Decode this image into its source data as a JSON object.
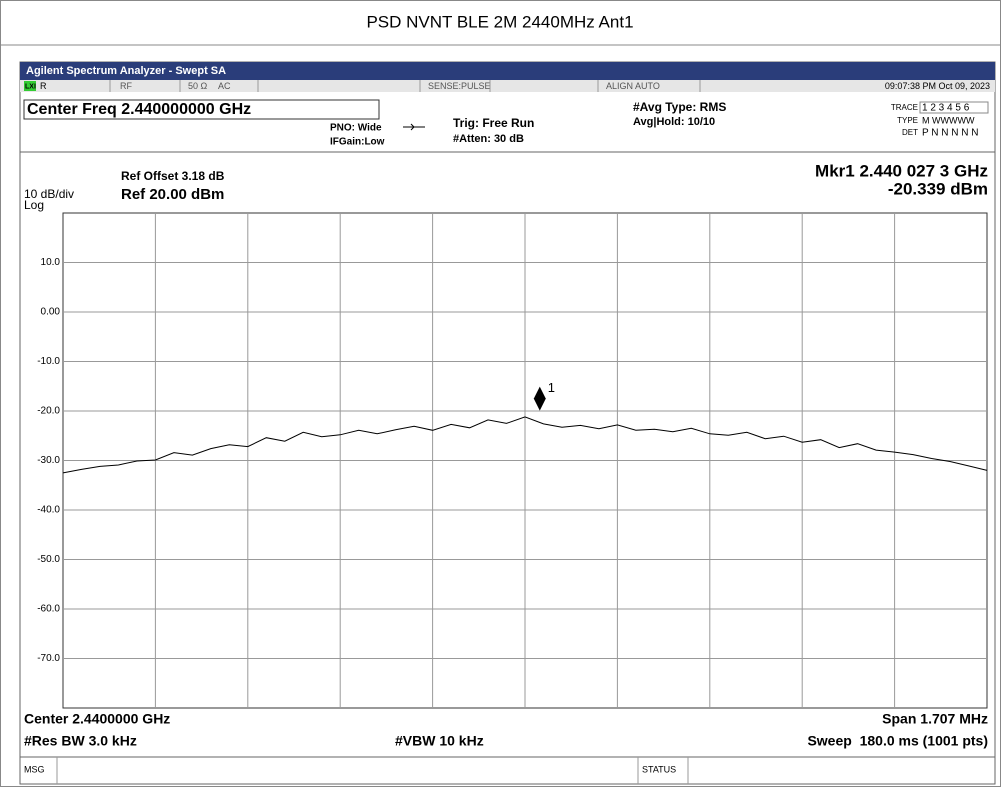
{
  "title": "PSD NVNT BLE 2M 2440MHz Ant1",
  "app_bar": "Agilent Spectrum Analyzer - Swept SA",
  "status_row": {
    "lxi": "LXI",
    "r": "R",
    "rf": "RF",
    "impedance": "50 Ω",
    "coupling": "AC",
    "sense": "SENSE:PULSE",
    "align": "ALIGN AUTO",
    "datetime": "09:07:38 PM Oct 09, 2023"
  },
  "settings": {
    "center_freq": "Center Freq 2.440000000 GHz",
    "pno": "PNO: Wide",
    "ifgain": "IFGain:Low",
    "trig": "Trig: Free Run",
    "atten": "#Atten: 30 dB",
    "avg_type": "#Avg Type: RMS",
    "avg_hold": "Avg|Hold: 10/10",
    "trace_label": "TRACE",
    "trace_value": "1 2 3 4 5 6",
    "type_label": "TYPE",
    "type_value": "M WWWWW",
    "det_label": "DET",
    "det_value": "P N N N N N"
  },
  "chart_data": {
    "type": "line",
    "ref_offset": "Ref Offset 3.18 dB",
    "scale": "10 dB/div",
    "ref_level": "Ref 20.00 dBm",
    "scale_type": "Log",
    "ylim": [
      -80,
      20
    ],
    "yticks": [
      {
        "value": 10,
        "label": "10.0"
      },
      {
        "value": 0,
        "label": "0.00"
      },
      {
        "value": -10,
        "label": "-10.0"
      },
      {
        "value": -20,
        "label": "-20.0"
      },
      {
        "value": -30,
        "label": "-30.0"
      },
      {
        "value": -40,
        "label": "-40.0"
      },
      {
        "value": -50,
        "label": "-50.0"
      },
      {
        "value": -60,
        "label": "-60.0"
      },
      {
        "value": -70,
        "label": "-70.0"
      }
    ],
    "grid": true,
    "xlim": [
      2439.1465,
      2440.8535
    ],
    "series": [
      {
        "color": "#000000",
        "values": [
          -32.5,
          -31.8,
          -31.2,
          -30.9,
          -30.1,
          -29.9,
          -28.4,
          -28.9,
          -27.6,
          -26.8,
          -27.2,
          -25.4,
          -26.1,
          -24.3,
          -25.2,
          -24.8,
          -23.9,
          -24.6,
          -23.8,
          -23.1,
          -23.9,
          -22.7,
          -23.4,
          -21.8,
          -22.5,
          -21.2,
          -22.6,
          -23.3,
          -22.9,
          -23.6,
          -22.8,
          -23.9,
          -23.7,
          -24.2,
          -23.5,
          -24.6,
          -24.9,
          -24.3,
          -25.6,
          -25.1,
          -26.3,
          -25.8,
          -27.4,
          -26.6,
          -27.9,
          -28.3,
          -28.8,
          -29.6,
          -30.2,
          -31.1,
          -32.0
        ]
      }
    ],
    "marker": {
      "number": "1",
      "label": "Mkr1 2.440 027 3 GHz",
      "x": 2440.0273,
      "value": -20.339,
      "value_label": "-20.339 dBm"
    },
    "center": "Center 2.4400000 GHz",
    "span": "Span 1.707 MHz",
    "rbw": "#Res BW 3.0 kHz",
    "vbw": "#VBW 10 kHz",
    "sweep": "Sweep  180.0 ms (1001 pts)"
  },
  "footer": {
    "msg": "MSG",
    "status": "STATUS"
  }
}
